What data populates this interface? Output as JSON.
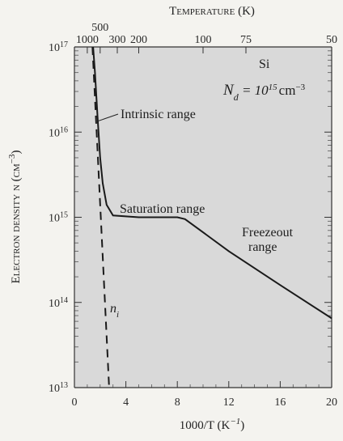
{
  "chart_data": {
    "type": "line",
    "title": "",
    "top_axis": {
      "label": "Temperature (K)",
      "ticks": [
        {
          "label": "1000",
          "value": 1000
        },
        {
          "label": "500",
          "value": 500
        },
        {
          "label": "300",
          "value": 300
        },
        {
          "label": "200",
          "value": 200
        },
        {
          "label": "100",
          "value": 100
        },
        {
          "label": "75",
          "value": 75
        },
        {
          "label": "50",
          "value": 50
        }
      ]
    },
    "xlabel": "1000/T (K",
    "xlabel_sup": "−1",
    "xlabel_close": ")",
    "xlim": [
      0,
      20
    ],
    "xticks": [
      0,
      4,
      8,
      12,
      16,
      20
    ],
    "ylabel": "Electron density n (cm",
    "ylabel_sup": "−3",
    "ylabel_close": ")",
    "yscale": "log",
    "ylim_exponent": [
      13,
      17
    ],
    "yticks": [
      {
        "exp": 13,
        "base": "10",
        "sup": "13"
      },
      {
        "exp": 14,
        "base": "10",
        "sup": "14"
      },
      {
        "exp": 15,
        "base": "10",
        "sup": "15"
      },
      {
        "exp": 16,
        "base": "10",
        "sup": "16"
      },
      {
        "exp": 17,
        "base": "10",
        "sup": "17"
      }
    ],
    "background_color": "#d9d9d9",
    "series": [
      {
        "style": "solid",
        "color": "#1a1a1a",
        "points": [
          [
            1.45,
            1e+17
          ],
          [
            1.6,
            5e+16
          ],
          [
            1.8,
            1.5e+16
          ],
          [
            2.0,
            5000000000000000.0
          ],
          [
            2.2,
            2500000000000000.0
          ],
          [
            2.5,
            1400000000000000.0
          ],
          [
            3.0,
            1050000000000000.0
          ],
          [
            5.0,
            1000000000000000.0
          ],
          [
            8.0,
            1000000000000000.0
          ],
          [
            8.6,
            950000000000000.0
          ],
          [
            12.0,
            400000000000000.0
          ],
          [
            16.0,
            160000000000000.0
          ],
          [
            20.0,
            65000000000000.0
          ]
        ]
      },
      {
        "name": "n",
        "name_sub": "i",
        "style": "dashed",
        "color": "#1a1a1a",
        "points": [
          [
            1.4,
            1e+17
          ],
          [
            2.7,
            10000000000000.0
          ]
        ]
      }
    ],
    "annotations": {
      "si": "Si",
      "nd_main": "N",
      "nd_sub": "d",
      "nd_eq": " = 10",
      "nd_sup": "15",
      "nd_unit": "cm",
      "nd_unit_sup": "−3",
      "intrinsic": "Intrinsic range",
      "saturation": "Saturation range",
      "freezeout_1": "Freezeout",
      "freezeout_2": "range"
    }
  }
}
